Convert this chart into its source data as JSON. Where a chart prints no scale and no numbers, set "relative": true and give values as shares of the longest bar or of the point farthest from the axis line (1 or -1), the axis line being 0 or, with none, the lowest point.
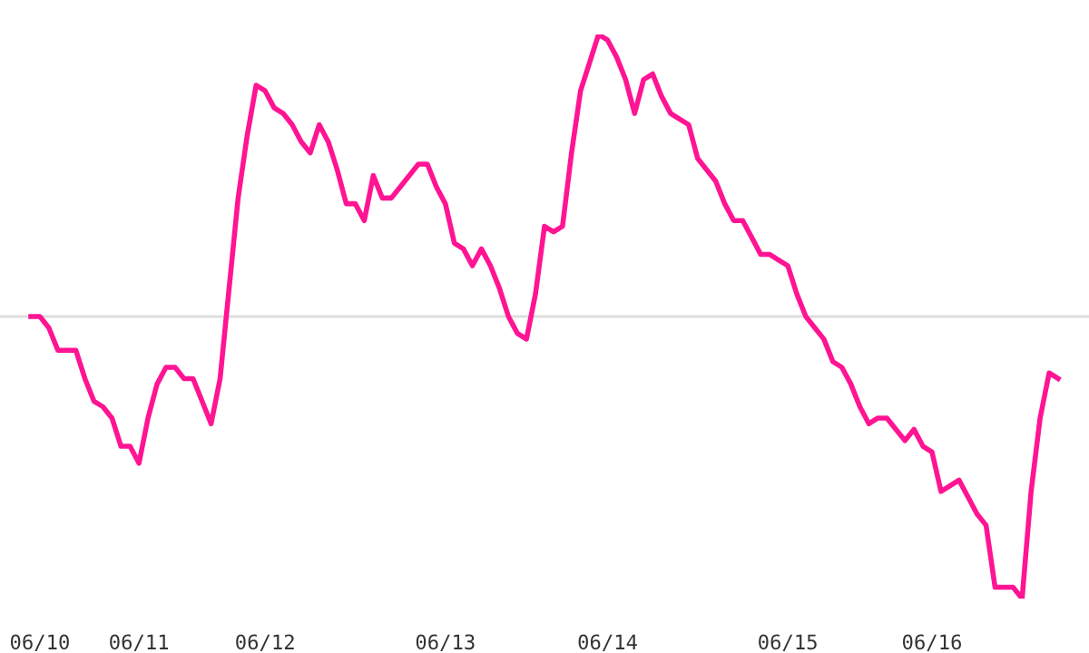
{
  "chart_data": {
    "type": "line",
    "relative": true,
    "color": "#ff1493",
    "grid": false,
    "legend": false,
    "marker": "none",
    "line_style": "solid",
    "categories": [
      null,
      "06/10",
      null,
      null,
      null,
      null,
      null,
      null,
      null,
      null,
      null,
      null,
      "06/11",
      null,
      null,
      null,
      null,
      null,
      null,
      null,
      null,
      null,
      null,
      null,
      null,
      null,
      "06/12",
      null,
      null,
      null,
      null,
      null,
      null,
      null,
      null,
      null,
      null,
      null,
      null,
      null,
      null,
      null,
      null,
      null,
      null,
      null,
      "06/13",
      null,
      null,
      null,
      null,
      null,
      null,
      null,
      null,
      null,
      null,
      null,
      null,
      null,
      null,
      null,
      null,
      null,
      "06/14",
      null,
      null,
      null,
      null,
      null,
      null,
      null,
      null,
      null,
      null,
      null,
      null,
      null,
      null,
      null,
      null,
      null,
      null,
      null,
      "06/15",
      null,
      null,
      null,
      null,
      null,
      null,
      null,
      null,
      null,
      null,
      null,
      null,
      null,
      null,
      null,
      "06/16",
      null,
      null,
      null,
      null,
      null,
      null,
      null,
      null,
      null,
      null,
      null,
      null,
      null,
      null
    ],
    "ref_lines": [
      {
        "axis": "y",
        "value": 0.5,
        "label": null,
        "color": "#dddddd"
      }
    ],
    "values": [
      0.5,
      0.5,
      0.48,
      0.44,
      0.44,
      0.44,
      0.39,
      0.35,
      0.34,
      0.32,
      0.27,
      0.27,
      0.24,
      0.32,
      0.38,
      0.41,
      0.41,
      0.39,
      0.39,
      0.35,
      0.31,
      0.39,
      0.55,
      0.71,
      0.82,
      0.91,
      0.9,
      0.87,
      0.86,
      0.84,
      0.81,
      0.79,
      0.84,
      0.81,
      0.76,
      0.7,
      0.7,
      0.67,
      0.75,
      0.71,
      0.71,
      0.73,
      0.75,
      0.77,
      0.77,
      0.73,
      0.7,
      0.63,
      0.62,
      0.59,
      0.62,
      0.59,
      0.55,
      0.5,
      0.47,
      0.46,
      0.54,
      0.66,
      0.65,
      0.66,
      0.79,
      0.9,
      0.95,
      1.0,
      0.99,
      0.96,
      0.92,
      0.86,
      0.92,
      0.93,
      0.89,
      0.86,
      0.85,
      0.84,
      0.78,
      0.76,
      0.74,
      0.7,
      0.67,
      0.67,
      0.64,
      0.61,
      0.61,
      0.6,
      0.59,
      0.54,
      0.5,
      0.48,
      0.46,
      0.42,
      0.41,
      0.38,
      0.34,
      0.31,
      0.32,
      0.32,
      0.3,
      0.28,
      0.3,
      0.27,
      0.26,
      0.19,
      0.2,
      0.21,
      0.18,
      0.15,
      0.13,
      0.02,
      0.02,
      0.02,
      0.0,
      0.19,
      0.32,
      0.4,
      0.39
    ]
  }
}
